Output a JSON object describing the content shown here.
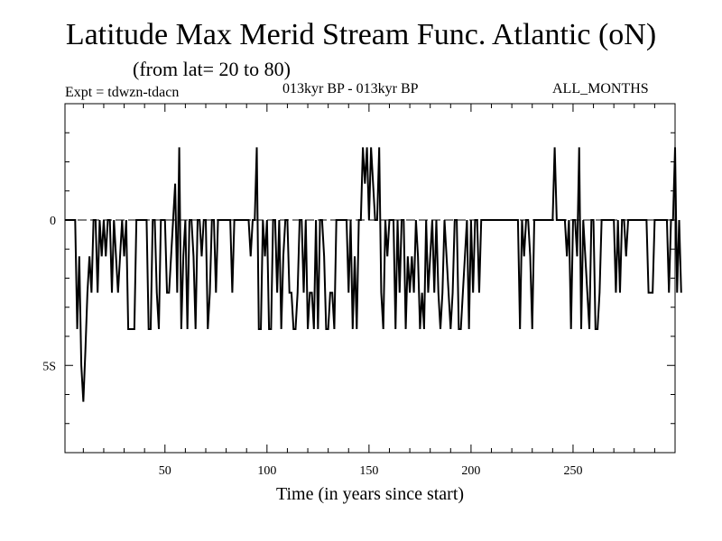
{
  "title": "Latitude Max Merid Stream Func. Atlantic (oN)",
  "subtitle": "(from lat= 20 to 80)",
  "expt_label": "Expt = tdwzn-tdacn",
  "period_label": "013kyr BP - 013kyr BP",
  "months_label": "ALL_MONTHS",
  "chart_data": {
    "type": "line",
    "xlabel": "Time (in years since start)",
    "ylabel": "",
    "xlim": [
      1,
      300
    ],
    "ylim": [
      -8,
      4
    ],
    "x_ticks": [
      50,
      100,
      150,
      200,
      250
    ],
    "x_tick_labels": [
      "50",
      "100",
      "150",
      "200",
      "250"
    ],
    "y_ticks": [
      -5,
      0
    ],
    "y_tick_labels": [
      "5S",
      "0"
    ],
    "grid": false,
    "series": [
      {
        "values": [
          0,
          0,
          0,
          0,
          0,
          0,
          -3.75,
          -1.25,
          -5,
          -6.25,
          -4.5,
          -2.5,
          -1.25,
          -2.5,
          0,
          0,
          -2.5,
          0,
          -1.25,
          0,
          -1.25,
          0,
          0,
          -2.5,
          0,
          -1.25,
          -2.5,
          -1.25,
          0,
          -1.25,
          0,
          -3.75,
          -3.75,
          -3.75,
          -3.75,
          0,
          0,
          0,
          0,
          0,
          0,
          -3.75,
          -3.75,
          0,
          0,
          -2.5,
          -3.75,
          0,
          0,
          0,
          -2.5,
          -2.5,
          -1.25,
          0,
          1.25,
          -2.5,
          2.5,
          -3.75,
          -1.25,
          0,
          -3.75,
          0,
          0,
          -1.25,
          -3.75,
          0,
          0,
          -1.25,
          0,
          0,
          -3.75,
          -2.5,
          0,
          0,
          -2.5,
          0,
          0,
          0,
          0,
          0,
          0,
          0,
          -2.5,
          0,
          0,
          0,
          0,
          0,
          0,
          0,
          0,
          -1.25,
          0,
          0,
          2.5,
          -3.75,
          -3.75,
          0,
          -1.25,
          0,
          -3.75,
          -3.75,
          0,
          0,
          -2.5,
          0,
          -3.75,
          -1.25,
          0,
          0,
          -2.5,
          -2.5,
          -3.75,
          -3.75,
          -2.5,
          0,
          0,
          -2.5,
          0,
          -3.75,
          -2.5,
          -2.5,
          -3.75,
          0,
          -3.75,
          0,
          0,
          -1.25,
          -3.75,
          -3.75,
          -2.5,
          -2.5,
          -3.75,
          0,
          0,
          0,
          0,
          0,
          0,
          -2.5,
          0,
          -3.75,
          -1.25,
          -3.75,
          0,
          0,
          2.5,
          1.25,
          2.5,
          0,
          2.5,
          1.25,
          0,
          0,
          2.5,
          -2.5,
          -3.75,
          0,
          -1.25,
          0,
          0,
          0,
          -3.75,
          0,
          -2.5,
          0,
          0,
          -3.75,
          -1.25,
          -2.5,
          -1.25,
          -2.5,
          0,
          -1.25,
          -3.75,
          -2.5,
          -3.75,
          0,
          -2.5,
          -1.25,
          0,
          -2.5,
          0,
          -2.5,
          -3.75,
          -2.5,
          0,
          -1.25,
          -2.5,
          -3.75,
          -2.5,
          0,
          0,
          -3.75,
          -3.75,
          -2.5,
          -1.25,
          0,
          -3.75,
          0,
          -2.5,
          0,
          0,
          -2.5,
          0,
          0,
          0,
          0,
          0,
          0,
          0,
          0,
          0,
          0,
          0,
          0,
          0,
          0,
          0,
          0,
          0,
          0,
          0,
          -3.75,
          0,
          -1.25,
          0,
          0,
          -1.25,
          -3.75,
          0,
          0,
          0,
          0,
          0,
          0,
          0,
          0,
          0,
          0,
          2.5,
          0,
          0,
          0,
          0,
          0,
          -1.25,
          0,
          -3.75,
          0,
          0,
          -1.25,
          2.5,
          -3.75,
          0,
          -1.25,
          -2.5,
          -3.75,
          0,
          0,
          -3.75,
          -3.75,
          -2.5,
          0,
          0,
          0,
          0,
          0,
          0,
          0,
          -2.5,
          0,
          -2.5,
          0,
          0,
          -1.25,
          0,
          0,
          0,
          0,
          0,
          0,
          0,
          0,
          0,
          0,
          -2.5,
          -2.5,
          -2.5,
          0,
          0,
          0,
          0,
          0,
          0,
          0,
          -2.5,
          0,
          0,
          2.5,
          -2.5,
          0,
          -2.5
        ]
      }
    ]
  }
}
